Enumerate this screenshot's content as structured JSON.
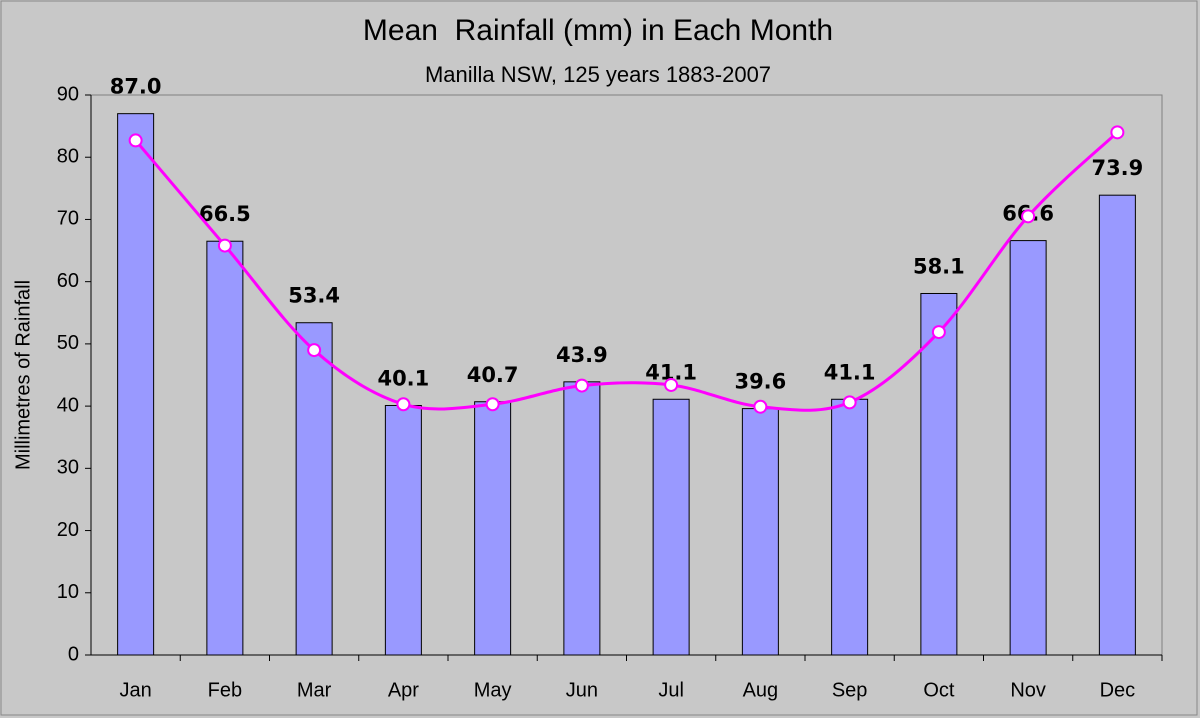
{
  "chart_data": {
    "type": "bar",
    "title": "Mean  Rainfall (mm) in Each Month",
    "subtitle": "Manilla NSW, 125 years 1883-2007",
    "y_label": "Millimetres of Rainfall",
    "categories": [
      "Jan",
      "Feb",
      "Mar",
      "Apr",
      "May",
      "Jun",
      "Jul",
      "Aug",
      "Sep",
      "Oct",
      "Nov",
      "Dec"
    ],
    "series": [
      {
        "type": "bar",
        "color": "#9999ff",
        "values": [
          87.0,
          66.5,
          53.4,
          40.1,
          40.7,
          43.9,
          41.1,
          39.6,
          41.1,
          58.1,
          66.6,
          73.9
        ],
        "value_labels": [
          "87.0",
          "66.5",
          "53.4",
          "40.1",
          "40.7",
          "43.9",
          "41.1",
          "39.6",
          "41.1",
          "58.1",
          "66.6",
          "73.9"
        ]
      },
      {
        "type": "line",
        "color": "#ff00ff",
        "smooth": true,
        "values": [
          82.7,
          65.8,
          49.0,
          40.3,
          40.3,
          43.3,
          43.4,
          39.9,
          40.6,
          51.9,
          70.5,
          84.0
        ]
      }
    ],
    "ylim": [
      0,
      90
    ],
    "yticks": [
      0,
      10,
      20,
      30,
      40,
      50,
      60,
      70,
      80,
      90
    ],
    "grid": false
  }
}
